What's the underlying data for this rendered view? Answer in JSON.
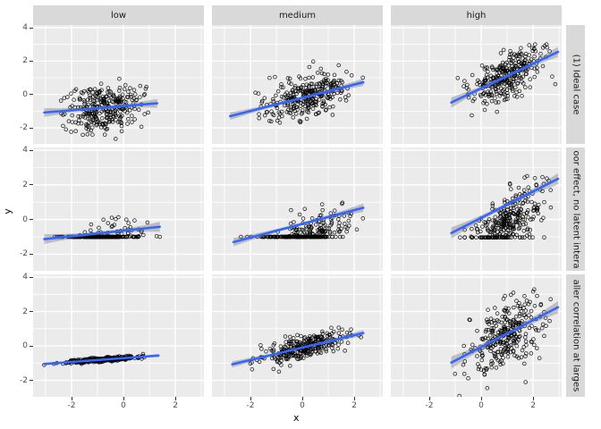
{
  "chart_data": {
    "type": "scatter",
    "title": "",
    "xlabel": "x",
    "ylabel": "y",
    "legend": "none",
    "grid": true,
    "facet_cols": [
      "low",
      "medium",
      "high"
    ],
    "facet_rows": [
      "(1) Ideal case",
      "oor effect, no latent intera",
      "aller correlation at larges"
    ],
    "x_ticks": [
      "-2",
      "0",
      "2"
    ],
    "y_ticks": [
      "4",
      "2",
      "0",
      "-2"
    ],
    "x_tick_values": [
      -2,
      0,
      2
    ],
    "y_tick_values": [
      4,
      2,
      0,
      -2
    ],
    "x_minor_values": [
      -3,
      -1,
      1,
      3
    ],
    "y_minor_values": [
      -3,
      -1,
      1,
      3
    ],
    "x_domain": [
      -3.48,
      3.1
    ],
    "y_domain": [
      -2.96,
      4.16
    ],
    "style": {
      "panel_bg": "#EBEBEB",
      "strip_bg": "#D9D9D9",
      "grid_major": "#FFFFFF",
      "grid_minor": "#FFFFFF",
      "line_color": "#3366FF",
      "ribbon_color": "rgba(102,102,102,0.35)",
      "point_color": "rgba(0,0,0,0.88)"
    },
    "panels": [
      {
        "row": 0,
        "col": 0,
        "row_label": "(1) Ideal case",
        "col_label": "low",
        "n": 300,
        "seed": 101,
        "line": {
          "x1": -3.05,
          "y1": -1.08,
          "x2": 1.3,
          "y2": -0.53
        },
        "cloud": {
          "x_mean": -0.8,
          "x_sd": 0.72,
          "x_min": -3.1,
          "x_max": 1.45,
          "noise_sd": 0.66,
          "floor": null
        },
        "ribbon": {
          "mid": 0.09,
          "end": 0.26
        }
      },
      {
        "row": 0,
        "col": 1,
        "row_label": "(1) Ideal case",
        "col_label": "medium",
        "n": 300,
        "seed": 102,
        "line": {
          "x1": -2.78,
          "y1": -1.3,
          "x2": 2.35,
          "y2": 0.73
        },
        "cloud": {
          "x_mean": 0.12,
          "x_sd": 0.82,
          "x_min": -2.8,
          "x_max": 2.4,
          "noise_sd": 0.6,
          "floor": null
        },
        "ribbon": {
          "mid": 0.08,
          "end": 0.22
        }
      },
      {
        "row": 0,
        "col": 2,
        "row_label": "(1) Ideal case",
        "col_label": "high",
        "n": 300,
        "seed": 103,
        "line": {
          "x1": -1.15,
          "y1": -0.48,
          "x2": 2.96,
          "y2": 2.55
        },
        "cloud": {
          "x_mean": 0.98,
          "x_sd": 0.72,
          "x_min": -1.2,
          "x_max": 2.98,
          "noise_sd": 0.62,
          "floor": null
        },
        "ribbon": {
          "mid": 0.1,
          "end": 0.3
        }
      },
      {
        "row": 1,
        "col": 0,
        "row_label": "oor effect, no latent intera",
        "col_label": "low",
        "n": 300,
        "seed": 201,
        "line": {
          "x1": -3.05,
          "y1": -1.13,
          "x2": 1.4,
          "y2": -0.42
        },
        "cloud": {
          "x_mean": -0.8,
          "x_sd": 0.72,
          "x_min": -3.1,
          "x_max": 1.45,
          "noise_sd": 0.6,
          "floor": -1.0,
          "gen_intercept": -1.3,
          "gen_slope": 0.38
        },
        "ribbon": {
          "mid": 0.09,
          "end": 0.28
        }
      },
      {
        "row": 1,
        "col": 1,
        "row_label": "oor effect, no latent intera",
        "col_label": "medium",
        "n": 300,
        "seed": 202,
        "line": {
          "x1": -2.65,
          "y1": -1.3,
          "x2": 2.35,
          "y2": 0.68
        },
        "cloud": {
          "x_mean": 0.12,
          "x_sd": 0.82,
          "x_min": -2.8,
          "x_max": 2.4,
          "noise_sd": 0.65,
          "floor": -1.0,
          "gen_intercept": -1.25,
          "gen_slope": 0.6
        },
        "ribbon": {
          "mid": 0.08,
          "end": 0.24
        }
      },
      {
        "row": 1,
        "col": 2,
        "row_label": "oor effect, no latent intera",
        "col_label": "high",
        "n": 300,
        "seed": 203,
        "line": {
          "x1": -1.15,
          "y1": -0.78,
          "x2": 2.96,
          "y2": 2.35
        },
        "cloud": {
          "x_mean": 0.98,
          "x_sd": 0.72,
          "x_min": -1.2,
          "x_max": 2.98,
          "noise_sd": 0.78,
          "floor": -1.03,
          "gen_intercept": -0.95,
          "gen_slope": 0.8
        },
        "ribbon": {
          "mid": 0.11,
          "end": 0.32
        }
      },
      {
        "row": 2,
        "col": 0,
        "row_label": "aller correlation at larges",
        "col_label": "low",
        "n": 300,
        "seed": 301,
        "line": {
          "x1": -3.05,
          "y1": -1.05,
          "x2": 1.35,
          "y2": -0.56
        },
        "cloud": {
          "x_mean": -0.8,
          "x_sd": 0.72,
          "x_min": -3.1,
          "x_max": 1.45,
          "noise_sd": 0.06,
          "floor": null
        },
        "ribbon": {
          "mid": 0.03,
          "end": 0.08
        }
      },
      {
        "row": 2,
        "col": 1,
        "row_label": "aller correlation at larges",
        "col_label": "medium",
        "n": 300,
        "seed": 302,
        "line": {
          "x1": -2.7,
          "y1": -1.07,
          "x2": 2.35,
          "y2": 0.75
        },
        "cloud": {
          "x_mean": 0.12,
          "x_sd": 0.82,
          "x_min": -2.8,
          "x_max": 2.4,
          "noise_sd": 0.33,
          "floor": null
        },
        "ribbon": {
          "mid": 0.06,
          "end": 0.18
        }
      },
      {
        "row": 2,
        "col": 2,
        "row_label": "aller correlation at larges",
        "col_label": "high",
        "n": 300,
        "seed": 303,
        "line": {
          "x1": -1.15,
          "y1": -0.97,
          "x2": 2.96,
          "y2": 2.25
        },
        "cloud": {
          "x_mean": 0.98,
          "x_sd": 0.72,
          "x_min": -1.2,
          "x_max": 2.98,
          "noise_sd": 0.95,
          "floor": null
        },
        "ribbon": {
          "mid": 0.12,
          "end": 0.35
        }
      }
    ]
  }
}
